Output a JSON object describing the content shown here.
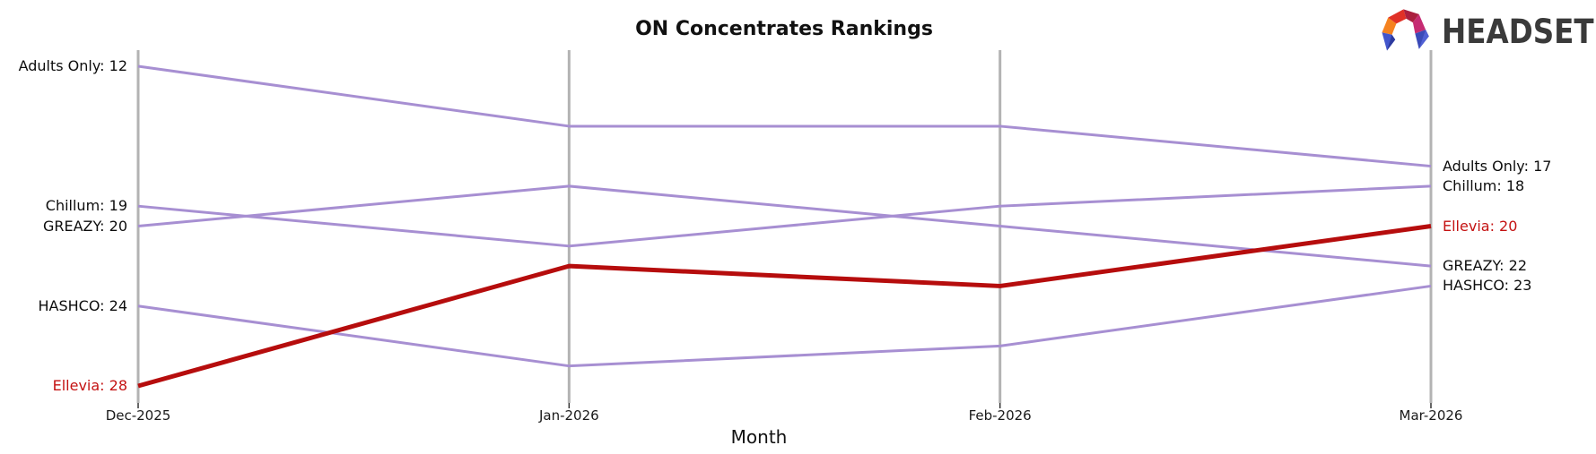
{
  "page": {
    "background": "#ffffff"
  },
  "logo": {
    "text": "HEADSET"
  },
  "chart_data": {
    "type": "line",
    "variant": "bump-ranking",
    "title": "ON Concentrates Rankings",
    "xlabel": "Month",
    "categories": [
      "Dec-2025",
      "Jan-2026",
      "Feb-2026",
      "Mar-2026"
    ],
    "y_axis": {
      "meaning": "brand sales rank (lower number = better, drawn higher)",
      "visible_rank_range": [
        12,
        28
      ],
      "inverted": true,
      "gridlines": false,
      "legend": "none - direct end-of-line labels"
    },
    "series": [
      {
        "name": "Adults Only",
        "values": [
          12,
          15,
          15,
          17
        ],
        "color": "#a78fd2",
        "highlighted": false,
        "label_left": "Adults Only: 12",
        "label_right": "Adults Only: 17"
      },
      {
        "name": "Chillum",
        "values": [
          19,
          21,
          19,
          18
        ],
        "color": "#a78fd2",
        "highlighted": false,
        "label_left": "Chillum: 19",
        "label_right": "Chillum: 18"
      },
      {
        "name": "GREAZY",
        "values": [
          20,
          18,
          20,
          22
        ],
        "color": "#a78fd2",
        "highlighted": false,
        "label_left": "GREAZY: 20",
        "label_right": "GREAZY: 22"
      },
      {
        "name": "HASHCO",
        "values": [
          24,
          27,
          26,
          23
        ],
        "color": "#a78fd2",
        "highlighted": false,
        "label_left": "HASHCO: 24",
        "label_right": "HASHCO: 23"
      },
      {
        "name": "Ellevia",
        "values": [
          28,
          22,
          23,
          20
        ],
        "color": "#b60d0d",
        "highlighted": true,
        "label_left": "Ellevia: 28",
        "label_right": "Ellevia: 20"
      }
    ],
    "colors": {
      "line_default": "#a78fd2",
      "line_highlight": "#b60d0d",
      "label_default": "#0d0d0d",
      "label_highlight": "#c41212",
      "axis": "#b3b3b3",
      "tick": "#333333"
    }
  }
}
